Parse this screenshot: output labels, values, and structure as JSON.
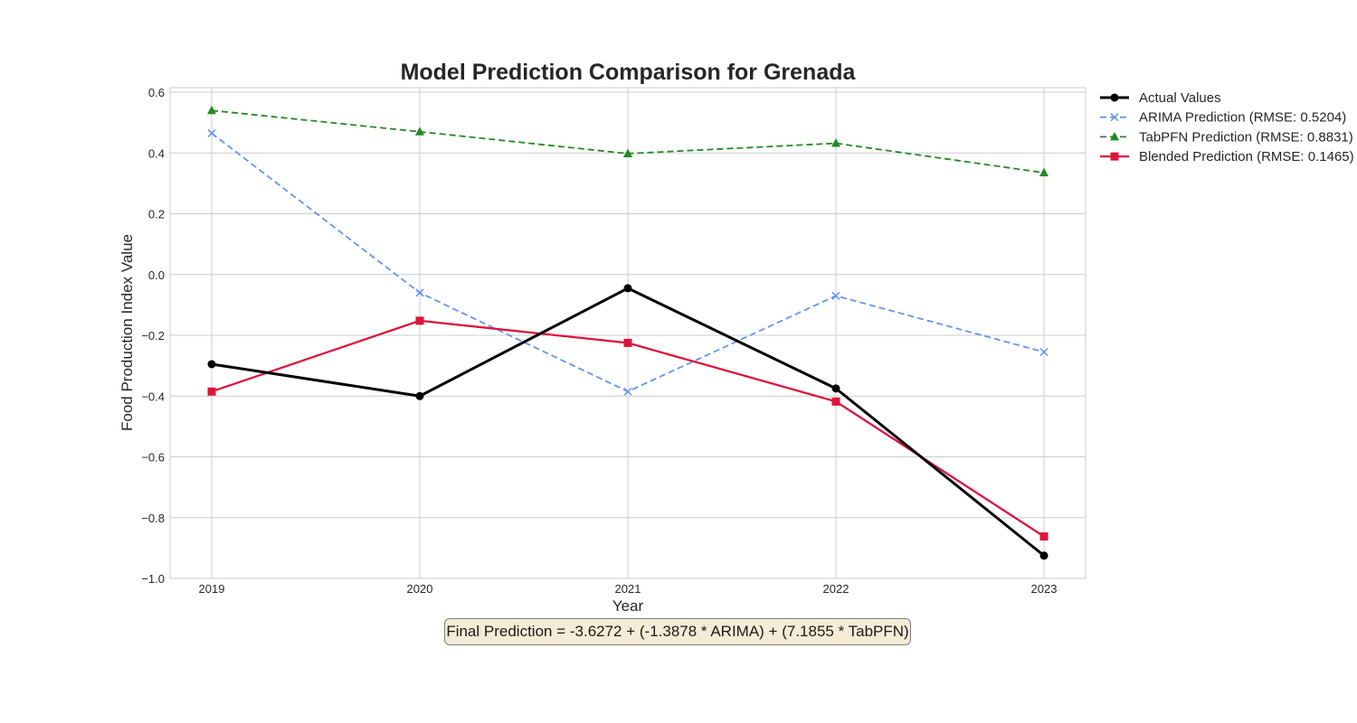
{
  "chart_data": {
    "type": "line",
    "title": "Model Prediction Comparison for Grenada",
    "xlabel": "Year",
    "ylabel": "Food Production Index Value",
    "x": [
      2019,
      2020,
      2021,
      2022,
      2023
    ],
    "x_ticks": [
      "2019",
      "2020",
      "2021",
      "2022",
      "2023"
    ],
    "ylim": [
      -1.0,
      0.615
    ],
    "y_ticks": [
      -1.0,
      -0.8,
      -0.6,
      -0.4,
      -0.2,
      0.0,
      0.2,
      0.4,
      0.6
    ],
    "grid": true,
    "legend_placement": "outside right, top",
    "series": [
      {
        "name": "Actual Values",
        "values": [
          -0.295,
          -0.4,
          -0.045,
          -0.375,
          -0.925
        ],
        "color": "#000000",
        "dash": "solid",
        "marker": "circle"
      },
      {
        "name": "ARIMA Prediction (RMSE: 0.5204)",
        "values": [
          0.465,
          -0.06,
          -0.385,
          -0.07,
          -0.255
        ],
        "color": "#6495ed",
        "dash": "dashed",
        "marker": "x"
      },
      {
        "name": "TabPFN Prediction (RMSE: 0.8831)",
        "values": [
          0.54,
          0.47,
          0.398,
          0.432,
          0.335
        ],
        "color": "#228b22",
        "dash": "dashed",
        "marker": "triangle"
      },
      {
        "name": "Blended Prediction (RMSE: 0.1465)",
        "values": [
          -0.385,
          -0.152,
          -0.225,
          -0.418,
          -0.862
        ],
        "color": "#dc143c",
        "dash": "solid",
        "marker": "square"
      }
    ],
    "annotation": "Final Prediction = -3.6272 + (-1.3878 * ARIMA) + (7.1855 * TabPFN)"
  }
}
